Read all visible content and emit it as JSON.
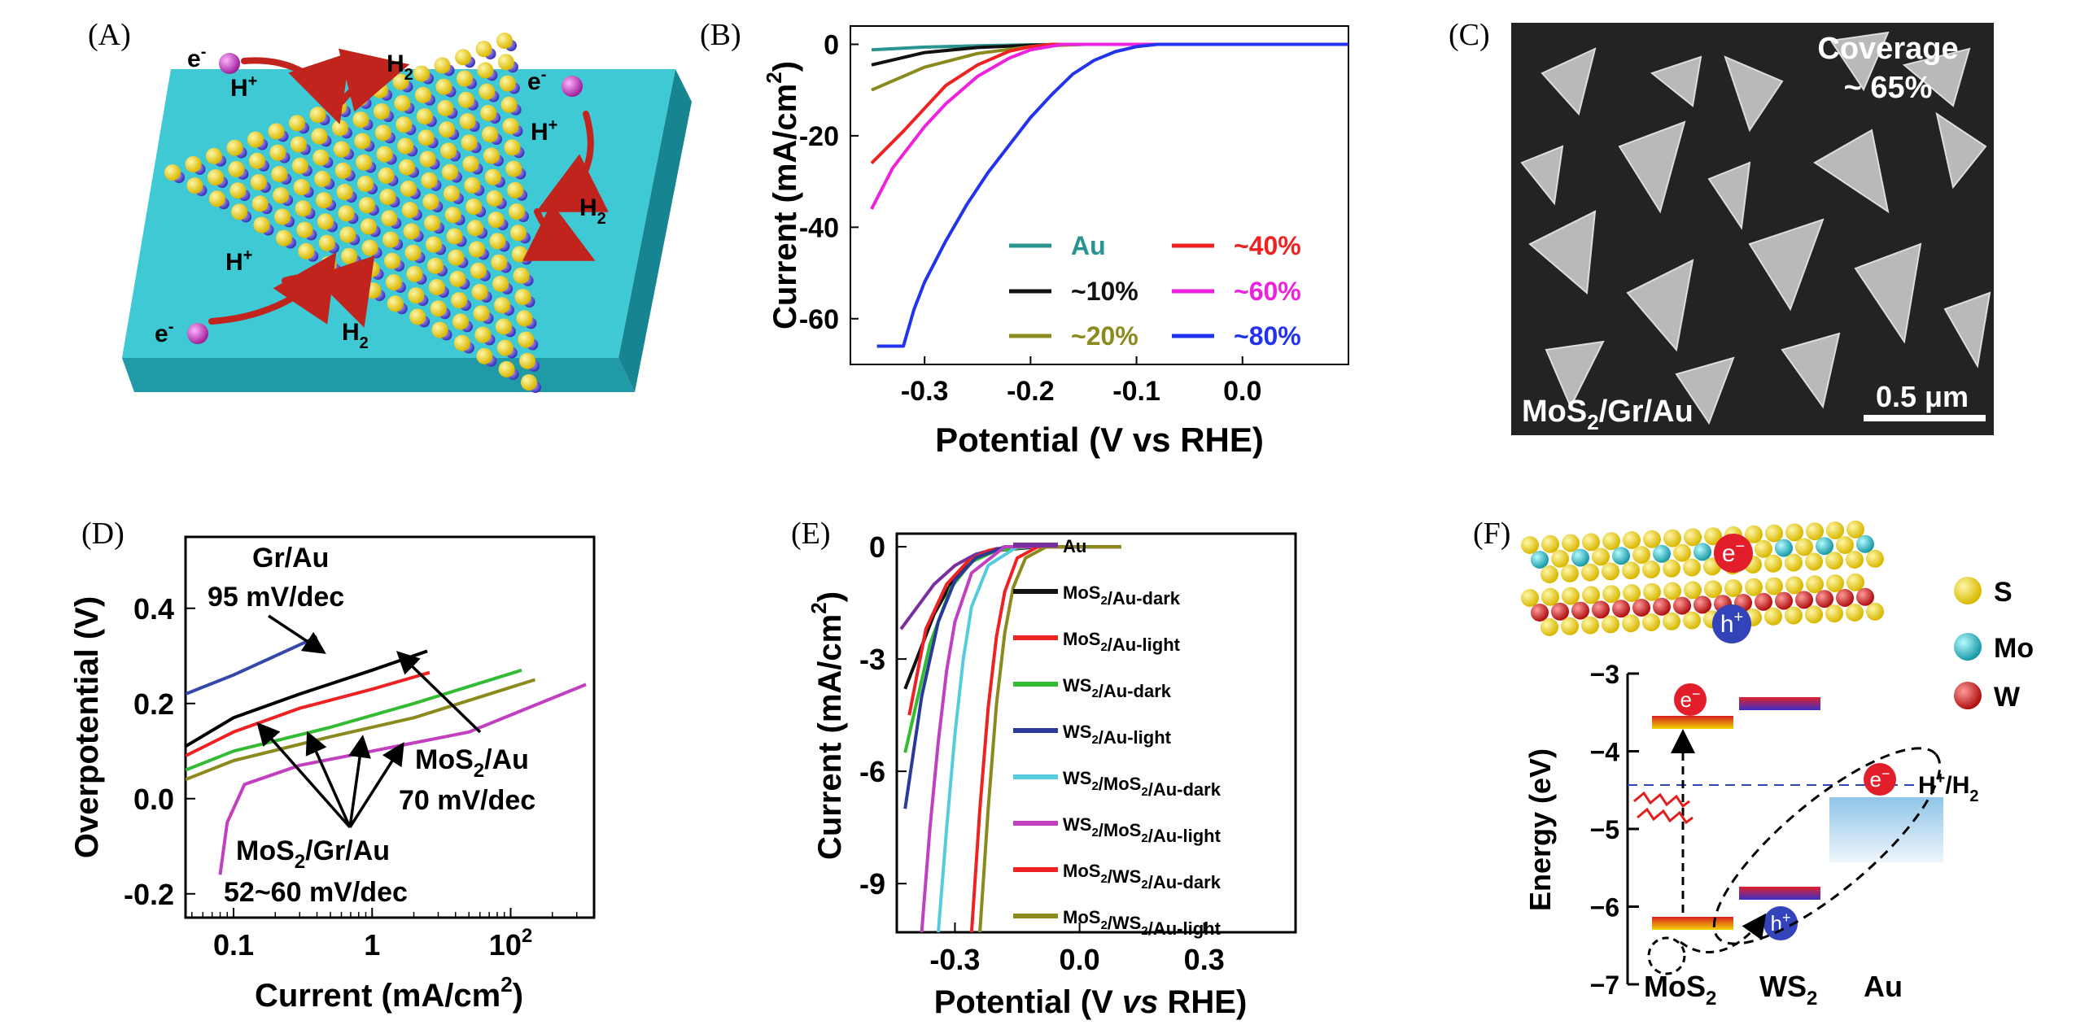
{
  "figure": {
    "panel_labels": [
      "(A)",
      "(B)",
      "(C)",
      "(D)",
      "(E)",
      "(F)"
    ]
  },
  "panel_a": {
    "labels": {
      "electron": "e",
      "electron_sup": "-",
      "proton": "H",
      "proton_sup": "+",
      "hydrogen": "H",
      "hydrogen_sub": "2"
    },
    "colors": {
      "substrate": "#3fc9d4",
      "sulfur": "#f2dc2a",
      "metal": "#5a4fd0",
      "arrow": "#c0241c",
      "electron": "#c43fc0"
    }
  },
  "panel_c": {
    "coverage_label": "Coverage",
    "coverage_value": "~ 65%",
    "sample_label_pre": "MoS",
    "sample_label_sub": "2",
    "sample_label_post": "/Gr/Au",
    "scale_bar": "0.5 μm"
  },
  "panel_f": {
    "legend": [
      {
        "name": "S",
        "color": "#ecd61c"
      },
      {
        "name": "Mo",
        "color": "#2fb9c4"
      },
      {
        "name": "W",
        "color": "#d72f2f"
      }
    ],
    "bubble_electron": "e",
    "bubble_electron_sup": "−",
    "bubble_hole": "h",
    "bubble_hole_sup": "+",
    "redox_pre": "H",
    "redox_sup": "+",
    "redox_post": "/H",
    "redox_sub": "2",
    "materials": [
      {
        "pre": "MoS",
        "sub": "2"
      },
      {
        "pre": "WS",
        "sub": "2"
      },
      {
        "pre": "Au",
        "sub": ""
      }
    ]
  },
  "chart_data": [
    {
      "panel": "B",
      "type": "line",
      "xlabel": "Potential (V vs RHE)",
      "ylabel_pre": "Current (mA/cm",
      "ylabel_sup": "2",
      "ylabel_post": ")",
      "xlim": [
        -0.37,
        0.1
      ],
      "ylim": [
        -70,
        4
      ],
      "xticks": [
        -0.3,
        -0.2,
        -0.1,
        0.0
      ],
      "xtick_labels": [
        "-0.3",
        "-0.2",
        "-0.1",
        "0.0"
      ],
      "yticks": [
        0,
        -20,
        -40,
        -60
      ],
      "ytick_labels": [
        "0",
        "-20",
        "-40",
        "-60"
      ],
      "legend": "inside lower-right, two columns",
      "series": [
        {
          "name": "Au",
          "color": "#2a9490",
          "x": [
            -0.35,
            -0.3,
            -0.25,
            -0.2,
            -0.15,
            0.0,
            0.1
          ],
          "y": [
            -1.2,
            -0.6,
            -0.3,
            -0.1,
            0,
            0,
            0
          ]
        },
        {
          "name": "~10%",
          "color": "#111111",
          "x": [
            -0.35,
            -0.3,
            -0.25,
            -0.2,
            -0.15,
            0.0,
            0.1
          ],
          "y": [
            -4.5,
            -1.8,
            -0.7,
            -0.2,
            0,
            0,
            0
          ]
        },
        {
          "name": "~20%",
          "color": "#8a8a1e",
          "x": [
            -0.35,
            -0.3,
            -0.25,
            -0.2,
            -0.15,
            0.0,
            0.1
          ],
          "y": [
            -10,
            -5,
            -2,
            -0.5,
            0,
            0,
            0
          ]
        },
        {
          "name": "~40%",
          "color": "#ee2222",
          "x": [
            -0.35,
            -0.32,
            -0.3,
            -0.28,
            -0.25,
            -0.22,
            -0.2,
            -0.18,
            0.0,
            0.1
          ],
          "y": [
            -26,
            -19,
            -14,
            -9,
            -4.5,
            -1.5,
            -0.5,
            0,
            0,
            0
          ]
        },
        {
          "name": "~60%",
          "color": "#ee22dd",
          "x": [
            -0.35,
            -0.33,
            -0.3,
            -0.28,
            -0.25,
            -0.22,
            -0.2,
            -0.17,
            0.0,
            0.1
          ],
          "y": [
            -36,
            -27,
            -18,
            -13,
            -7,
            -3,
            -1.2,
            0,
            0,
            0
          ]
        },
        {
          "name": "~80%",
          "color": "#2233ee",
          "x": [
            -0.345,
            -0.32,
            -0.31,
            -0.3,
            -0.28,
            -0.26,
            -0.24,
            -0.22,
            -0.2,
            -0.18,
            -0.16,
            -0.14,
            -0.12,
            -0.1,
            -0.08,
            0.0,
            0.1
          ],
          "y": [
            -66,
            -66,
            -58,
            -52,
            -43,
            -35,
            -28,
            -22,
            -16,
            -11,
            -6.5,
            -3.5,
            -1.6,
            -0.5,
            0,
            0,
            0
          ]
        }
      ]
    },
    {
      "panel": "D",
      "type": "line",
      "xscale": "log",
      "xlabel_pre": "Current (mA/cm",
      "xlabel_sup": "2",
      "xlabel_post": ")",
      "ylabel": "Overpotential (V)",
      "xlim": [
        0.045,
        40
      ],
      "ylim": [
        -0.25,
        0.55
      ],
      "xticks": [
        0.1,
        1,
        10
      ],
      "xtick_labels": [
        "0.1",
        "1",
        "10"
      ],
      "xtick_sup_10": "2",
      "yticks": [
        0.4,
        0.2,
        0.0,
        -0.2
      ],
      "ytick_labels": [
        "0.4",
        "0.2",
        "0.0",
        "-0.2"
      ],
      "annotations": [
        {
          "line1": "Gr/Au",
          "line2": "95 mV/dec"
        },
        {
          "line1_pre": "MoS",
          "line1_sub": "2",
          "line1_post": "/Au",
          "line2": "70 mV/dec"
        },
        {
          "line1_pre": "MoS",
          "line1_sub": "2",
          "line1_post": "/Gr/Au",
          "line2": "52~60 mV/dec"
        }
      ],
      "series": [
        {
          "name": "Gr/Au",
          "color": "#3348aa",
          "x": [
            0.045,
            0.1,
            0.2,
            0.4
          ],
          "y": [
            0.22,
            0.26,
            0.3,
            0.34
          ]
        },
        {
          "name": "MoS2/Au",
          "color": "#000000",
          "x": [
            0.045,
            0.1,
            0.3,
            1,
            2.5
          ],
          "y": [
            0.11,
            0.17,
            0.22,
            0.27,
            0.31
          ]
        },
        {
          "name": "MoS2/Gr/Au (red)",
          "color": "#ee2222",
          "x": [
            0.045,
            0.1,
            0.3,
            1,
            2.6
          ],
          "y": [
            0.09,
            0.14,
            0.19,
            0.23,
            0.265
          ]
        },
        {
          "name": "MoS2/Gr/Au (green)",
          "color": "#33bb33",
          "x": [
            0.045,
            0.1,
            0.5,
            2,
            12
          ],
          "y": [
            0.06,
            0.1,
            0.15,
            0.2,
            0.27
          ]
        },
        {
          "name": "MoS2/Gr/Au (olive)",
          "color": "#8a8a1e",
          "x": [
            0.045,
            0.1,
            0.5,
            2,
            15
          ],
          "y": [
            0.04,
            0.08,
            0.13,
            0.17,
            0.25
          ]
        },
        {
          "name": "MoS2/Gr/Au (magenta)",
          "color": "#c040c0",
          "x": [
            0.08,
            0.09,
            0.12,
            0.3,
            1,
            5,
            35
          ],
          "y": [
            -0.16,
            -0.05,
            0.03,
            0.07,
            0.1,
            0.14,
            0.24
          ]
        }
      ]
    },
    {
      "panel": "E",
      "type": "line",
      "xlabel_pre": "Potential (V ",
      "xlabel_vs": "vs",
      "xlabel_post": " RHE)",
      "ylabel_pre": "Current (mA/cm",
      "ylabel_sup": "2",
      "ylabel_post": ")",
      "xlim": [
        -0.44,
        0.52
      ],
      "ylim": [
        -10.3,
        0.35
      ],
      "xticks": [
        -0.3,
        0.0,
        0.3
      ],
      "xtick_labels": [
        "-0.3",
        "0.0",
        "0.3"
      ],
      "yticks": [
        0,
        -3,
        -6,
        -9
      ],
      "ytick_labels": [
        "0",
        "-3",
        "-6",
        "-9"
      ],
      "legend": "inside right",
      "series": [
        {
          "name": "Au",
          "label_pre": "Au",
          "label_sub": "",
          "label_post": "",
          "color": "#7a2fa0",
          "x": [
            -0.43,
            -0.35,
            -0.3,
            -0.25,
            -0.2,
            -0.1,
            0.1
          ],
          "y": [
            -2.2,
            -1.0,
            -0.5,
            -0.2,
            -0.05,
            0,
            0
          ]
        },
        {
          "name": "MoS2/Au-dark",
          "label_pre": "MoS",
          "label_sub": "2",
          "label_post": "/Au-dark",
          "color": "#111111",
          "x": [
            -0.42,
            -0.35,
            -0.3,
            -0.25,
            -0.2,
            -0.1,
            0.1
          ],
          "y": [
            -3.8,
            -1.8,
            -0.8,
            -0.3,
            -0.1,
            0,
            0
          ]
        },
        {
          "name": "MoS2/Au-light",
          "label_pre": "MoS",
          "label_sub": "2",
          "label_post": "/Au-light",
          "color": "#ee2222",
          "x": [
            -0.41,
            -0.37,
            -0.32,
            -0.27,
            -0.22,
            -0.15,
            0.1
          ],
          "y": [
            -4.5,
            -2.2,
            -1.0,
            -0.4,
            -0.1,
            0,
            0
          ]
        },
        {
          "name": "WS2/Au-dark",
          "label_pre": "WS",
          "label_sub": "2",
          "label_post": "/Au-dark",
          "color": "#33bb33",
          "x": [
            -0.42,
            -0.36,
            -0.31,
            -0.26,
            -0.2,
            -0.12,
            0.1
          ],
          "y": [
            -5.5,
            -2.6,
            -1.1,
            -0.4,
            -0.1,
            0,
            0
          ]
        },
        {
          "name": "WS2/Au-light",
          "label_pre": "WS",
          "label_sub": "2",
          "label_post": "/Au-light",
          "color": "#2a3a99",
          "x": [
            -0.42,
            -0.38,
            -0.34,
            -0.3,
            -0.25,
            -0.18,
            0.1
          ],
          "y": [
            -7.0,
            -4.0,
            -2.0,
            -0.9,
            -0.3,
            0,
            0
          ]
        },
        {
          "name": "WS2/MoS2/Au-dark",
          "label_pre": "WS",
          "label_sub": "2",
          "label_post": "/MoS",
          "label_sub2": "2",
          "label_post2": "/Au-dark",
          "color": "#55ccdd",
          "x": [
            -0.34,
            -0.32,
            -0.3,
            -0.28,
            -0.26,
            -0.22,
            -0.15,
            0.1
          ],
          "y": [
            -10.3,
            -7.5,
            -5,
            -3,
            -1.6,
            -0.5,
            0,
            0
          ]
        },
        {
          "name": "WS2/MoS2/Au-light",
          "label_pre": "WS",
          "label_sub": "2",
          "label_post": "/MoS",
          "label_sub2": "2",
          "label_post2": "/Au-light",
          "color": "#c040c0",
          "x": [
            -0.38,
            -0.36,
            -0.34,
            -0.32,
            -0.3,
            -0.26,
            -0.18,
            0.1
          ],
          "y": [
            -10.3,
            -7.5,
            -5.2,
            -3.3,
            -2,
            -0.7,
            0,
            0
          ]
        },
        {
          "name": "MoS2/WS2/Au-dark",
          "label_pre": "MoS",
          "label_sub": "2",
          "label_post": "/WS",
          "label_sub2": "2",
          "label_post2": "/Au-dark",
          "color": "#ee2222",
          "x": [
            -0.26,
            -0.24,
            -0.22,
            -0.2,
            -0.18,
            -0.15,
            -0.1,
            0.1
          ],
          "y": [
            -10.3,
            -7,
            -4.3,
            -2.4,
            -1.2,
            -0.3,
            0,
            0
          ]
        },
        {
          "name": "MoS2/WS2/Au-light",
          "label_pre": "MoS",
          "label_sub": "2",
          "label_post": "/WS",
          "label_sub2": "2",
          "label_post2": "/Au-light",
          "color": "#8a8a1e",
          "x": [
            -0.24,
            -0.22,
            -0.2,
            -0.18,
            -0.16,
            -0.13,
            -0.08,
            0.1
          ],
          "y": [
            -10.3,
            -7,
            -4.2,
            -2.3,
            -1.1,
            -0.3,
            0,
            0
          ]
        }
      ]
    },
    {
      "panel": "F",
      "type": "diagram",
      "ylabel": "Energy (eV)",
      "ylim": [
        -7,
        -3
      ],
      "yticks": [
        -3,
        -4,
        -5,
        -6,
        -7
      ],
      "ytick_labels": [
        "−3",
        "−4",
        "−5",
        "−6",
        "−7"
      ],
      "levels": [
        {
          "material": "MoS2",
          "band": "CB",
          "energy": -3.75
        },
        {
          "material": "MoS2",
          "band": "VB",
          "energy": -6.35
        },
        {
          "material": "WS2",
          "band": "CB",
          "energy": -3.55
        },
        {
          "material": "WS2",
          "band": "VB",
          "energy": -5.95
        },
        {
          "material": "H+/H2",
          "band": "redox",
          "energy": -4.5
        }
      ]
    }
  ]
}
